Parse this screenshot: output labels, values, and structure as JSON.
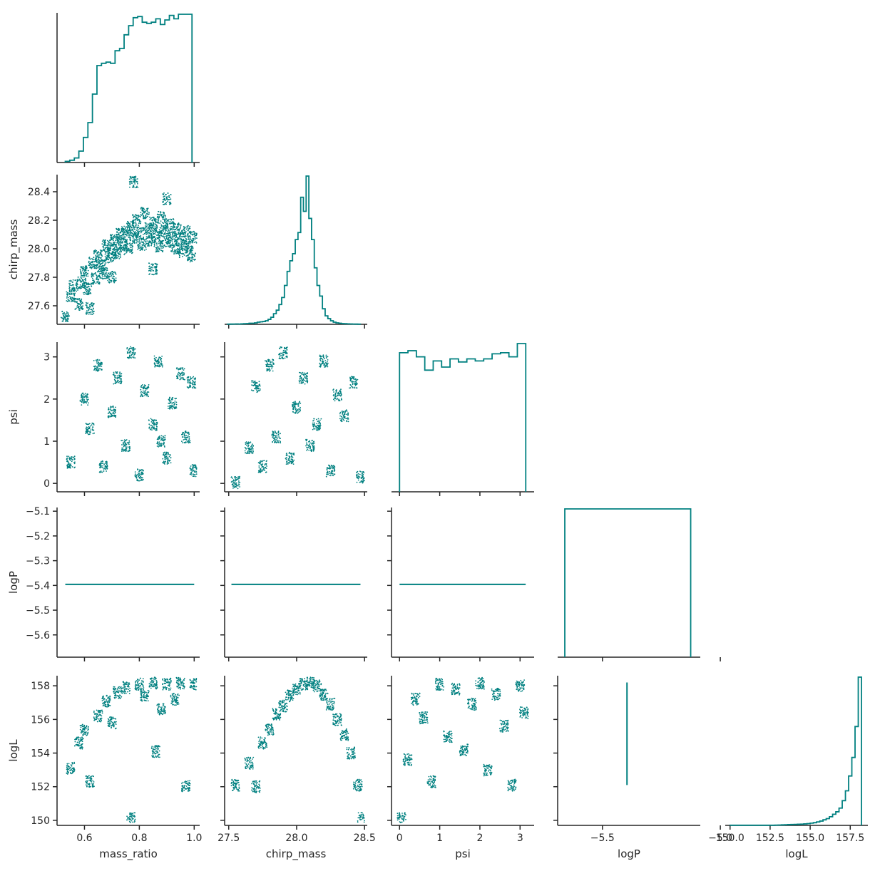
{
  "chart_data": {
    "type": "scatter",
    "layout": "corner-pairplot",
    "color": "#008080",
    "variables": [
      "mass_ratio",
      "chirp_mass",
      "psi",
      "logP",
      "logL"
    ],
    "xlabels": [
      "mass_ratio",
      "chirp_mass",
      "psi",
      "logP",
      "logL"
    ],
    "ylabels": [
      "",
      "chirp_mass",
      "psi",
      "logP",
      "logL"
    ],
    "ranges": {
      "mass_ratio": [
        0.5,
        1.02
      ],
      "chirp_mass": [
        27.47,
        28.52
      ],
      "psi": [
        -0.2,
        3.35
      ],
      "logP": [
        -5.69,
        -5.085
      ],
      "logL": [
        149.7,
        158.6
      ]
    },
    "x_ticks": {
      "mass_ratio": [
        {
          "v": 0.6,
          "t": "0.6"
        },
        {
          "v": 0.8,
          "t": "0.8"
        },
        {
          "v": 1.0,
          "t": "1.0"
        }
      ],
      "chirp_mass": [
        {
          "v": 27.5,
          "t": "27.5"
        },
        {
          "v": 28.0,
          "t": "28.0"
        },
        {
          "v": 28.5,
          "t": "28.5"
        }
      ],
      "psi": [
        {
          "v": 0,
          "t": "0"
        },
        {
          "v": 1,
          "t": "1"
        },
        {
          "v": 2,
          "t": "2"
        },
        {
          "v": 3,
          "t": "3"
        }
      ],
      "logP": [
        {
          "v": -5.5,
          "t": "−5.5"
        },
        {
          "v": -5.0,
          "t": "−5.0"
        }
      ],
      "logL": [
        {
          "v": 150.0,
          "t": "150.0"
        },
        {
          "v": 152.5,
          "t": "152.5"
        },
        {
          "v": 155.0,
          "t": "155.0"
        },
        {
          "v": 157.5,
          "t": "157.5"
        }
      ]
    },
    "y_ticks": {
      "chirp_mass": [
        {
          "v": 27.6,
          "t": "27.6"
        },
        {
          "v": 27.8,
          "t": "27.8"
        },
        {
          "v": 28.0,
          "t": "28.0"
        },
        {
          "v": 28.2,
          "t": "28.2"
        },
        {
          "v": 28.4,
          "t": "28.4"
        }
      ],
      "psi": [
        {
          "v": 0,
          "t": "0"
        },
        {
          "v": 1,
          "t": "1"
        },
        {
          "v": 2,
          "t": "2"
        },
        {
          "v": 3,
          "t": "3"
        }
      ],
      "logP": [
        {
          "v": -5.6,
          "t": "−5.6"
        },
        {
          "v": -5.5,
          "t": "−5.5"
        },
        {
          "v": -5.4,
          "t": "−5.4"
        },
        {
          "v": -5.3,
          "t": "−5.3"
        },
        {
          "v": -5.2,
          "t": "−5.2"
        },
        {
          "v": -5.1,
          "t": "−5.1"
        }
      ],
      "logL": [
        {
          "v": 150,
          "t": "150"
        },
        {
          "v": 152,
          "t": "152"
        },
        {
          "v": 154,
          "t": "154"
        },
        {
          "v": 156,
          "t": "156"
        },
        {
          "v": 158,
          "t": "158"
        }
      ]
    },
    "histograms": {
      "mass_ratio": {
        "bin_edges": [
          0.53,
          0.5465,
          0.563,
          0.5795,
          0.596,
          0.6125,
          0.629,
          0.6455,
          0.662,
          0.6785,
          0.695,
          0.7115,
          0.728,
          0.7445,
          0.761,
          0.7775,
          0.794,
          0.8105,
          0.827,
          0.8435,
          0.86,
          0.8765,
          0.893,
          0.9095,
          0.926,
          0.9425,
          0.959,
          0.9755,
          0.992
        ],
        "counts": [
          1,
          2,
          4,
          10,
          22,
          35,
          60,
          85,
          87,
          88,
          87,
          98,
          100,
          112,
          120,
          127,
          128,
          123,
          122,
          123,
          126,
          121,
          125,
          129,
          126,
          130,
          130,
          130
        ]
      },
      "chirp_mass": {
        "bin_edges": [
          27.49,
          27.51,
          27.53,
          27.55,
          27.57,
          27.59,
          27.61,
          27.63,
          27.65,
          27.67,
          27.69,
          27.71,
          27.73,
          27.75,
          27.77,
          27.79,
          27.81,
          27.83,
          27.85,
          27.87,
          27.89,
          27.91,
          27.93,
          27.95,
          27.97,
          27.99,
          28.01,
          28.03,
          28.05,
          28.07,
          28.09,
          28.11,
          28.13,
          28.15,
          28.17,
          28.19,
          28.21,
          28.23,
          28.25,
          28.27,
          28.29,
          28.31,
          28.33,
          28.35,
          28.37,
          28.39,
          28.41,
          28.43,
          28.45,
          28.47
        ],
        "counts": [
          0.2,
          0.3,
          0.4,
          0.5,
          0.4,
          0.6,
          0.8,
          1.0,
          1.5,
          1.5,
          2.0,
          3.0,
          3.5,
          4.0,
          5.0,
          7.0,
          10,
          15,
          20,
          28,
          38,
          55,
          75,
          90,
          100,
          120,
          130,
          180,
          160,
          210,
          150,
          120,
          80,
          55,
          40,
          22,
          12,
          8,
          5,
          3,
          2,
          1.5,
          1.0,
          0.8,
          0.6,
          0.5,
          0.4,
          0.3,
          0.2
        ]
      },
      "psi": {
        "bin_edges": [
          0,
          0.2094,
          0.4189,
          0.6283,
          0.8378,
          1.0472,
          1.2566,
          1.4661,
          1.6755,
          1.885,
          2.0944,
          2.3038,
          2.5133,
          2.7227,
          2.9322,
          3.1416
        ],
        "counts": [
          136,
          138,
          132,
          119,
          128,
          122,
          130,
          127,
          130,
          128,
          130,
          135,
          136,
          132,
          145
        ]
      },
      "logP": {
        "bin_edges": [
          -5.6597,
          -5.1257
        ],
        "counts": [
          100
        ]
      },
      "logL": {
        "bin_edges": [
          150.0,
          150.2,
          150.4,
          150.6,
          150.8,
          151.0,
          151.2,
          151.4,
          151.6,
          151.8,
          152.0,
          152.2,
          152.4,
          152.6,
          152.8,
          153.0,
          153.2,
          153.4,
          153.6,
          153.8,
          154.0,
          154.2,
          154.4,
          154.6,
          154.8,
          155.0,
          155.2,
          155.4,
          155.6,
          155.8,
          156.0,
          156.2,
          156.4,
          156.6,
          156.8,
          157.0,
          157.2,
          157.4,
          157.6,
          157.8,
          158.0,
          158.2
        ],
        "counts": [
          0.1,
          0.1,
          0.1,
          0.1,
          0.1,
          0.1,
          0.1,
          0.1,
          0.1,
          0.1,
          0.1,
          0.1,
          0.1,
          0.1,
          0.2,
          0.3,
          0.4,
          0.5,
          0.6,
          0.7,
          0.8,
          0.9,
          1.0,
          1.2,
          1.4,
          1.8,
          2.2,
          2.8,
          3.5,
          4.5,
          5.5,
          7.0,
          9.0,
          11,
          14,
          20,
          28,
          40,
          55,
          80,
          120
        ]
      }
    },
    "scatter": {
      "chirp_mass_vs_mass_ratio": [
        [
          0.53,
          27.52
        ],
        [
          0.55,
          27.67
        ],
        [
          0.56,
          27.74
        ],
        [
          0.58,
          27.61
        ],
        [
          0.59,
          27.76
        ],
        [
          0.6,
          27.85
        ],
        [
          0.61,
          27.72
        ],
        [
          0.62,
          27.58
        ],
        [
          0.63,
          27.9
        ],
        [
          0.64,
          27.79
        ],
        [
          0.65,
          27.95
        ],
        [
          0.66,
          27.88
        ],
        [
          0.67,
          27.83
        ],
        [
          0.68,
          28.02
        ],
        [
          0.69,
          27.94
        ],
        [
          0.7,
          27.99
        ],
        [
          0.71,
          28.06
        ],
        [
          0.72,
          27.97
        ],
        [
          0.73,
          28.1
        ],
        [
          0.74,
          28.03
        ],
        [
          0.75,
          28.12
        ],
        [
          0.76,
          28.0
        ],
        [
          0.77,
          28.15
        ],
        [
          0.78,
          28.08
        ],
        [
          0.79,
          28.2
        ],
        [
          0.8,
          28.11
        ],
        [
          0.81,
          28.03
        ],
        [
          0.82,
          28.25
        ],
        [
          0.83,
          28.14
        ],
        [
          0.84,
          28.06
        ],
        [
          0.85,
          28.18
        ],
        [
          0.86,
          28.1
        ],
        [
          0.87,
          28.02
        ],
        [
          0.88,
          28.22
        ],
        [
          0.89,
          28.13
        ],
        [
          0.9,
          28.05
        ],
        [
          0.91,
          28.17
        ],
        [
          0.92,
          28.09
        ],
        [
          0.93,
          28.0
        ],
        [
          0.94,
          28.14
        ],
        [
          0.95,
          28.06
        ],
        [
          0.96,
          27.98
        ],
        [
          0.97,
          28.12
        ],
        [
          0.98,
          28.03
        ],
        [
          0.99,
          27.95
        ],
        [
          1.0,
          28.08
        ],
        [
          0.78,
          28.47
        ],
        [
          0.9,
          28.35
        ],
        [
          0.7,
          27.8
        ],
        [
          0.85,
          27.86
        ]
      ],
      "psi_vs_mass_ratio": [
        [
          0.55,
          0.5
        ],
        [
          0.6,
          2.0
        ],
        [
          0.62,
          1.3
        ],
        [
          0.65,
          2.8
        ],
        [
          0.67,
          0.4
        ],
        [
          0.7,
          1.7
        ],
        [
          0.72,
          2.5
        ],
        [
          0.75,
          0.9
        ],
        [
          0.77,
          3.1
        ],
        [
          0.8,
          0.2
        ],
        [
          0.82,
          2.2
        ],
        [
          0.85,
          1.4
        ],
        [
          0.87,
          2.9
        ],
        [
          0.9,
          0.6
        ],
        [
          0.92,
          1.9
        ],
        [
          0.95,
          2.6
        ],
        [
          0.97,
          1.1
        ],
        [
          1.0,
          0.3
        ],
        [
          0.99,
          2.4
        ],
        [
          0.88,
          1.0
        ]
      ],
      "logP_vs_mass_ratio": [
        [
          0.53,
          -5.3959
        ],
        [
          1.0,
          -5.3959
        ]
      ],
      "logL_vs_mass_ratio": [
        [
          0.55,
          153.1
        ],
        [
          0.58,
          154.6
        ],
        [
          0.6,
          155.4
        ],
        [
          0.62,
          152.3
        ],
        [
          0.65,
          156.2
        ],
        [
          0.68,
          157.1
        ],
        [
          0.7,
          155.8
        ],
        [
          0.72,
          157.6
        ],
        [
          0.75,
          157.9
        ],
        [
          0.77,
          150.1
        ],
        [
          0.8,
          158.1
        ],
        [
          0.82,
          157.4
        ],
        [
          0.85,
          158.15
        ],
        [
          0.88,
          156.6
        ],
        [
          0.9,
          158.1
        ],
        [
          0.93,
          157.2
        ],
        [
          0.95,
          158.15
        ],
        [
          0.97,
          152.0
        ],
        [
          1.0,
          158.1
        ],
        [
          0.86,
          154.1
        ]
      ],
      "psi_vs_chirp_mass": [
        [
          27.55,
          0.02
        ],
        [
          27.65,
          0.85
        ],
        [
          27.7,
          2.3
        ],
        [
          27.75,
          0.4
        ],
        [
          27.8,
          2.8
        ],
        [
          27.85,
          1.1
        ],
        [
          27.9,
          3.1
        ],
        [
          27.95,
          0.6
        ],
        [
          28.0,
          1.8
        ],
        [
          28.05,
          2.5
        ],
        [
          28.1,
          0.9
        ],
        [
          28.15,
          1.4
        ],
        [
          28.2,
          2.9
        ],
        [
          28.25,
          0.3
        ],
        [
          28.3,
          2.1
        ],
        [
          28.35,
          1.6
        ],
        [
          28.42,
          2.4
        ],
        [
          28.47,
          0.15
        ]
      ],
      "logP_vs_chirp_mass": [
        [
          27.52,
          -5.3959
        ],
        [
          28.47,
          -5.3959
        ]
      ],
      "logL_vs_chirp_mass": [
        [
          27.55,
          152.1
        ],
        [
          27.65,
          153.4
        ],
        [
          27.7,
          152.0
        ],
        [
          27.75,
          154.6
        ],
        [
          27.8,
          155.4
        ],
        [
          27.85,
          156.3
        ],
        [
          27.9,
          156.8
        ],
        [
          27.95,
          157.4
        ],
        [
          28.0,
          157.8
        ],
        [
          28.05,
          158.1
        ],
        [
          28.1,
          158.2
        ],
        [
          28.15,
          158.0
        ],
        [
          28.2,
          157.5
        ],
        [
          28.25,
          156.9
        ],
        [
          28.3,
          156.0
        ],
        [
          28.35,
          155.1
        ],
        [
          28.4,
          154.0
        ],
        [
          28.45,
          152.1
        ],
        [
          28.48,
          150.1
        ]
      ],
      "logP_vs_psi": [
        [
          0.0,
          -5.3959
        ],
        [
          3.14,
          -5.3959
        ]
      ],
      "logL_vs_psi": [
        [
          0.05,
          150.1
        ],
        [
          0.2,
          153.6
        ],
        [
          0.4,
          157.2
        ],
        [
          0.6,
          156.1
        ],
        [
          0.8,
          152.3
        ],
        [
          1.0,
          158.1
        ],
        [
          1.2,
          155.0
        ],
        [
          1.4,
          157.8
        ],
        [
          1.6,
          154.2
        ],
        [
          1.8,
          156.9
        ],
        [
          2.0,
          158.15
        ],
        [
          2.2,
          153.0
        ],
        [
          2.4,
          157.5
        ],
        [
          2.6,
          155.6
        ],
        [
          2.8,
          152.1
        ],
        [
          3.0,
          158.0
        ],
        [
          3.1,
          156.4
        ]
      ],
      "logL_vs_logP": [
        [
          -5.3959,
          152.1
        ],
        [
          -5.3959,
          158.2
        ]
      ]
    }
  }
}
